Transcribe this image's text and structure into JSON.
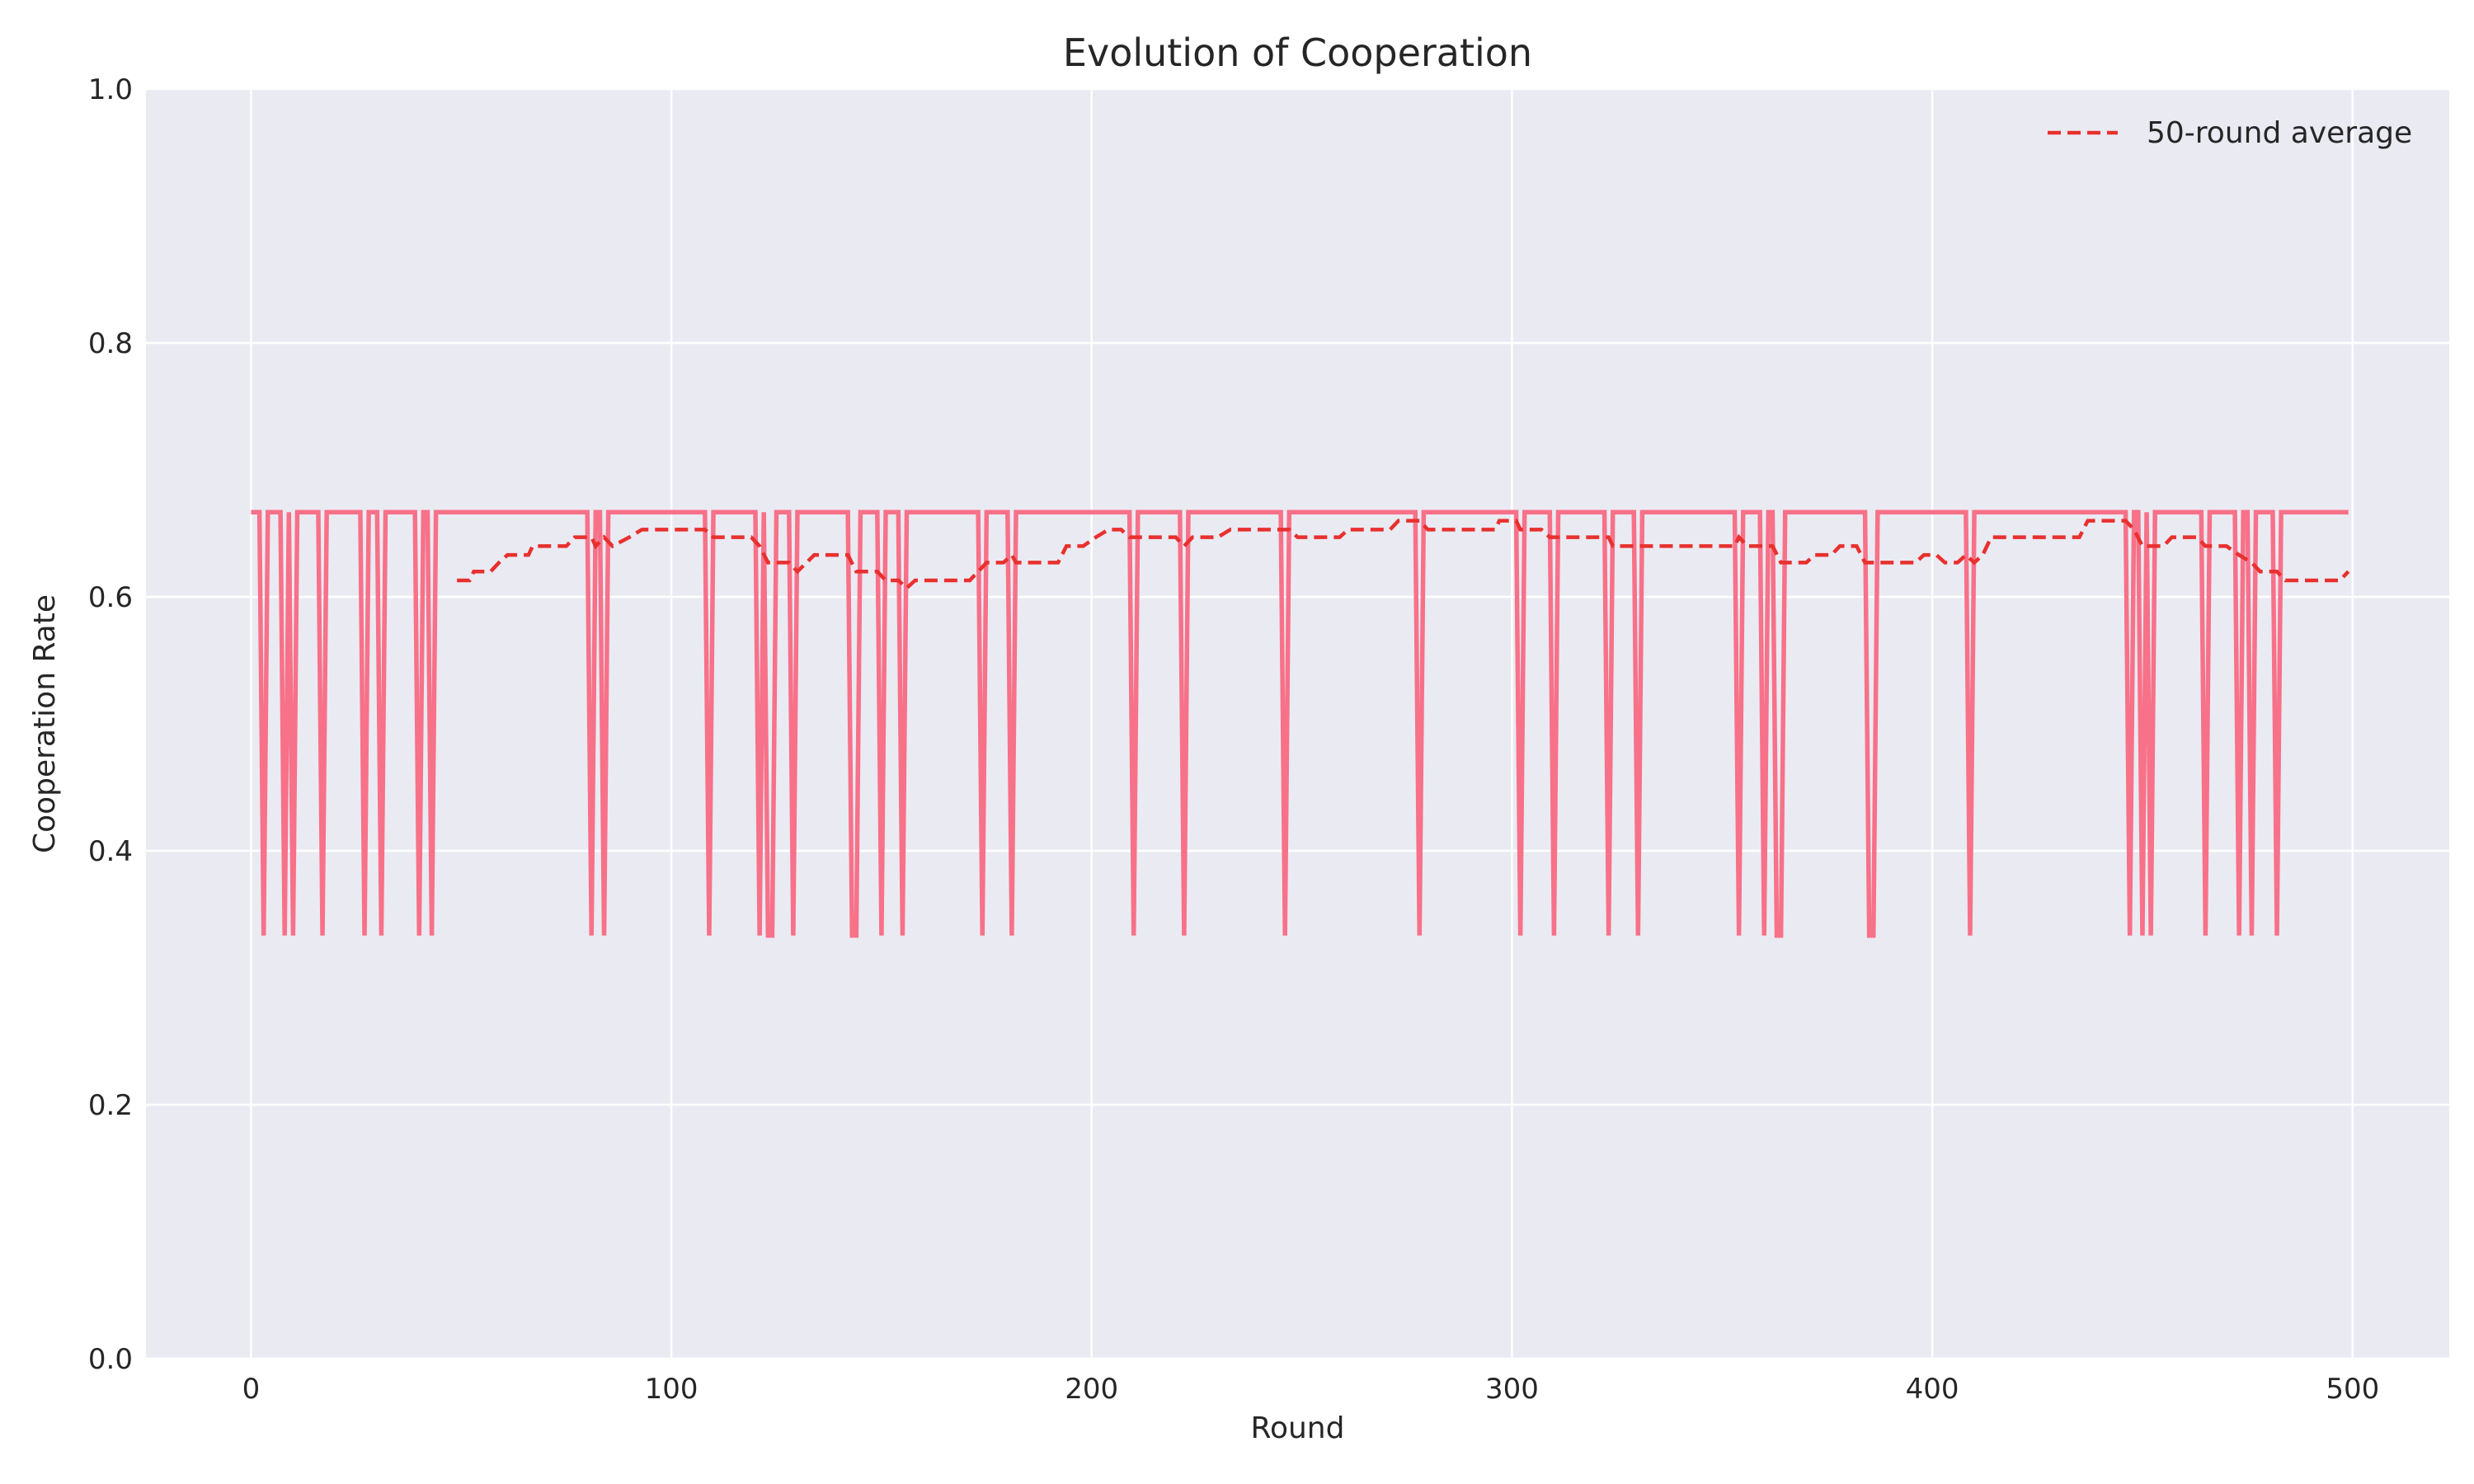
{
  "chart_data": {
    "type": "line",
    "title": "Evolution of Cooperation",
    "xlabel": "Round",
    "ylabel": "Cooperation Rate",
    "xlim": [
      -25,
      523
    ],
    "ylim": [
      0.0,
      1.0
    ],
    "xticks": [
      0,
      100,
      200,
      300,
      400,
      500
    ],
    "yticks": [
      0.0,
      0.2,
      0.4,
      0.6,
      0.8,
      1.0
    ],
    "ytick_labels": [
      "0.0",
      "0.2",
      "0.4",
      "0.6",
      "0.8",
      "1.0"
    ],
    "grid": true,
    "legend_position": "top-right",
    "background": "#eaeaf2",
    "series": [
      {
        "id": "raw",
        "color": "#f77189",
        "style": "solid",
        "high": 0.6667,
        "low": 0.3333,
        "n_rounds": 500,
        "low_rounds": [
          3,
          8,
          10,
          17,
          27,
          31,
          40,
          43,
          81,
          84,
          109,
          121,
          123,
          124,
          129,
          143,
          144,
          150,
          155,
          174,
          181,
          210,
          222,
          246,
          278,
          302,
          310,
          323,
          330,
          354,
          360,
          363,
          364,
          385,
          386,
          409,
          447,
          450,
          452,
          465,
          473,
          476,
          482
        ]
      },
      {
        "id": "avg",
        "name": "50-round average",
        "color": "#e8302e",
        "style": "dashed",
        "points": [
          [
            49,
            0.613
          ],
          [
            52,
            0.613
          ],
          [
            53,
            0.62
          ],
          [
            57,
            0.62
          ],
          [
            59,
            0.627
          ],
          [
            61,
            0.633
          ],
          [
            66,
            0.633
          ],
          [
            67,
            0.64
          ],
          [
            75,
            0.64
          ],
          [
            77,
            0.647
          ],
          [
            81,
            0.647
          ],
          [
            82,
            0.64
          ],
          [
            84,
            0.647
          ],
          [
            86,
            0.64
          ],
          [
            90,
            0.647
          ],
          [
            93,
            0.653
          ],
          [
            108,
            0.653
          ],
          [
            110,
            0.647
          ],
          [
            119,
            0.647
          ],
          [
            121,
            0.64
          ],
          [
            123,
            0.627
          ],
          [
            128,
            0.627
          ],
          [
            130,
            0.62
          ],
          [
            134,
            0.633
          ],
          [
            142,
            0.633
          ],
          [
            144,
            0.62
          ],
          [
            149,
            0.62
          ],
          [
            151,
            0.613
          ],
          [
            154,
            0.613
          ],
          [
            156,
            0.607
          ],
          [
            158,
            0.613
          ],
          [
            171,
            0.613
          ],
          [
            173,
            0.62
          ],
          [
            175,
            0.627
          ],
          [
            179,
            0.627
          ],
          [
            181,
            0.633
          ],
          [
            182,
            0.627
          ],
          [
            192,
            0.627
          ],
          [
            194,
            0.64
          ],
          [
            198,
            0.64
          ],
          [
            201,
            0.647
          ],
          [
            204,
            0.653
          ],
          [
            207,
            0.653
          ],
          [
            209,
            0.647
          ],
          [
            220,
            0.647
          ],
          [
            222,
            0.64
          ],
          [
            224,
            0.647
          ],
          [
            230,
            0.647
          ],
          [
            233,
            0.653
          ],
          [
            247,
            0.653
          ],
          [
            249,
            0.647
          ],
          [
            259,
            0.647
          ],
          [
            261,
            0.653
          ],
          [
            271,
            0.653
          ],
          [
            273,
            0.66
          ],
          [
            278,
            0.66
          ],
          [
            280,
            0.653
          ],
          [
            296,
            0.653
          ],
          [
            297,
            0.66
          ],
          [
            301,
            0.66
          ],
          [
            302,
            0.653
          ],
          [
            307,
            0.653
          ],
          [
            309,
            0.647
          ],
          [
            323,
            0.647
          ],
          [
            324,
            0.64
          ],
          [
            353,
            0.64
          ],
          [
            354,
            0.647
          ],
          [
            356,
            0.64
          ],
          [
            362,
            0.64
          ],
          [
            364,
            0.627
          ],
          [
            370,
            0.627
          ],
          [
            372,
            0.633
          ],
          [
            376,
            0.633
          ],
          [
            378,
            0.64
          ],
          [
            382,
            0.64
          ],
          [
            384,
            0.627
          ],
          [
            396,
            0.627
          ],
          [
            398,
            0.633
          ],
          [
            401,
            0.633
          ],
          [
            403,
            0.627
          ],
          [
            406,
            0.627
          ],
          [
            408,
            0.633
          ],
          [
            410,
            0.627
          ],
          [
            412,
            0.633
          ],
          [
            414,
            0.647
          ],
          [
            435,
            0.647
          ],
          [
            437,
            0.66
          ],
          [
            446,
            0.66
          ],
          [
            448,
            0.653
          ],
          [
            450,
            0.64
          ],
          [
            455,
            0.64
          ],
          [
            457,
            0.647
          ],
          [
            463,
            0.647
          ],
          [
            465,
            0.64
          ],
          [
            470,
            0.64
          ],
          [
            473,
            0.633
          ],
          [
            476,
            0.627
          ],
          [
            478,
            0.62
          ],
          [
            482,
            0.62
          ],
          [
            484,
            0.613
          ],
          [
            497,
            0.613
          ],
          [
            499,
            0.62
          ]
        ]
      }
    ],
    "legend": [
      {
        "label": "50-round average",
        "series": "avg"
      }
    ]
  }
}
